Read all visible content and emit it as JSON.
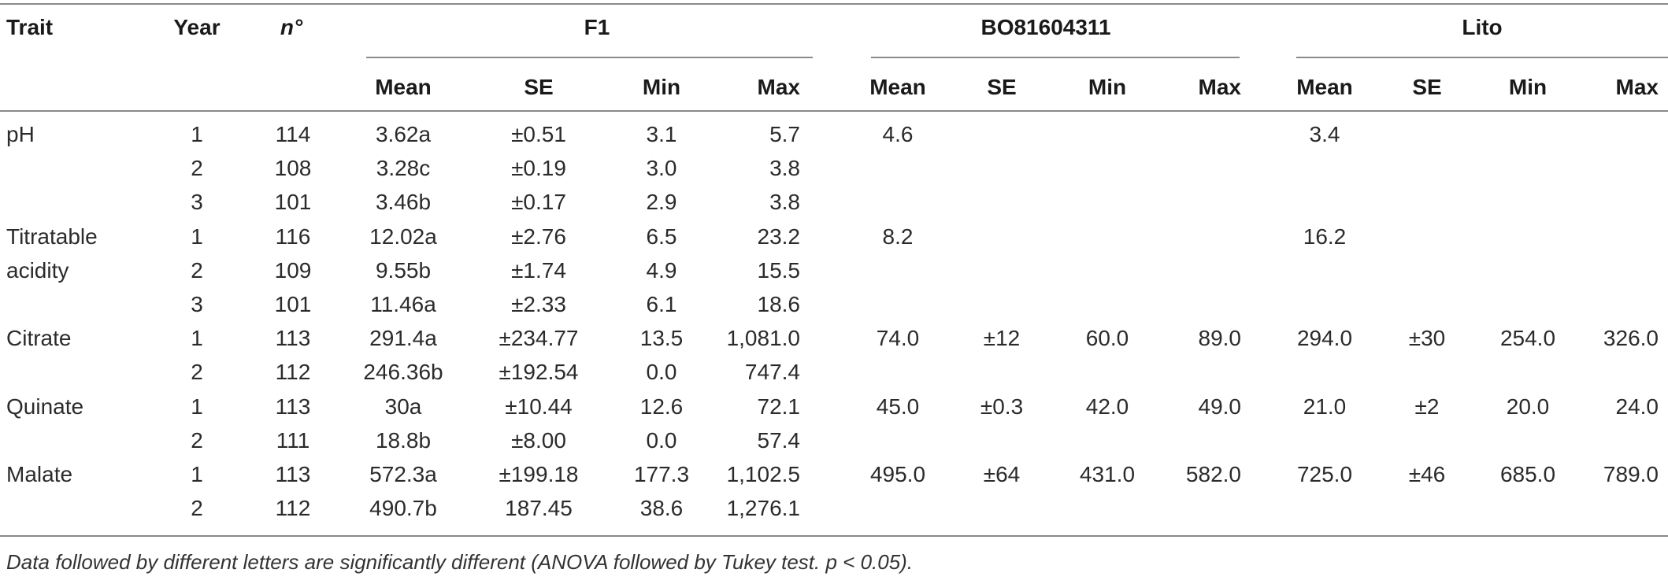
{
  "headers": {
    "trait": "Trait",
    "year": "Year",
    "n": "n°",
    "groups": [
      "F1",
      "BO81604311",
      "Lito"
    ],
    "subcols": [
      "Mean",
      "SE",
      "Min",
      "Max"
    ]
  },
  "rows": [
    {
      "trait": "pH",
      "year": "1",
      "n": "114",
      "cells": [
        "3.62a",
        "±0.51",
        "3.1",
        "5.7",
        "4.6",
        "",
        "",
        "",
        "3.4",
        "",
        "",
        ""
      ]
    },
    {
      "trait": "",
      "year": "2",
      "n": "108",
      "cells": [
        "3.28c",
        "±0.19",
        "3.0",
        "3.8",
        "",
        "",
        "",
        "",
        "",
        "",
        "",
        ""
      ]
    },
    {
      "trait": "",
      "year": "3",
      "n": "101",
      "cells": [
        "3.46b",
        "±0.17",
        "2.9",
        "3.8",
        "",
        "",
        "",
        "",
        "",
        "",
        "",
        ""
      ]
    },
    {
      "trait": "Titratable",
      "year": "1",
      "n": "116",
      "cells": [
        "12.02a",
        "±2.76",
        "6.5",
        "23.2",
        "8.2",
        "",
        "",
        "",
        "16.2",
        "",
        "",
        ""
      ]
    },
    {
      "trait": "acidity",
      "year": "2",
      "n": "109",
      "cells": [
        "9.55b",
        "±1.74",
        "4.9",
        "15.5",
        "",
        "",
        "",
        "",
        "",
        "",
        "",
        ""
      ]
    },
    {
      "trait": "",
      "year": "3",
      "n": "101",
      "cells": [
        "11.46a",
        "±2.33",
        "6.1",
        "18.6",
        "",
        "",
        "",
        "",
        "",
        "",
        "",
        ""
      ]
    },
    {
      "trait": "Citrate",
      "year": "1",
      "n": "113",
      "cells": [
        "291.4a",
        "±234.77",
        "13.5",
        "1,081.0",
        "74.0",
        "±12",
        "60.0",
        "89.0",
        "294.0",
        "±30",
        "254.0",
        "326.0"
      ]
    },
    {
      "trait": "",
      "year": "2",
      "n": "112",
      "cells": [
        "246.36b",
        "±192.54",
        "0.0",
        "747.4",
        "",
        "",
        "",
        "",
        "",
        "",
        "",
        ""
      ]
    },
    {
      "trait": "Quinate",
      "year": "1",
      "n": "113",
      "cells": [
        "30a",
        "±10.44",
        "12.6",
        "72.1",
        "45.0",
        "±0.3",
        "42.0",
        "49.0",
        "21.0",
        "±2",
        "20.0",
        "24.0"
      ]
    },
    {
      "trait": "",
      "year": "2",
      "n": "111",
      "cells": [
        "18.8b",
        "±8.00",
        "0.0",
        "57.4",
        "",
        "",
        "",
        "",
        "",
        "",
        "",
        ""
      ]
    },
    {
      "trait": "Malate",
      "year": "1",
      "n": "113",
      "cells": [
        "572.3a",
        "±199.18",
        "177.3",
        "1,102.5",
        "495.0",
        "±64",
        "431.0",
        "582.0",
        "725.0",
        "±46",
        "685.0",
        "789.0"
      ]
    },
    {
      "trait": "",
      "year": "2",
      "n": "112",
      "cells": [
        "490.7b",
        "187.45",
        "38.6",
        "1,276.1",
        "",
        "",
        "",
        "",
        "",
        "",
        "",
        ""
      ]
    }
  ],
  "footnote": "Data followed by different letters are significantly different (ANOVA followed by Tukey test. p < 0.05)."
}
